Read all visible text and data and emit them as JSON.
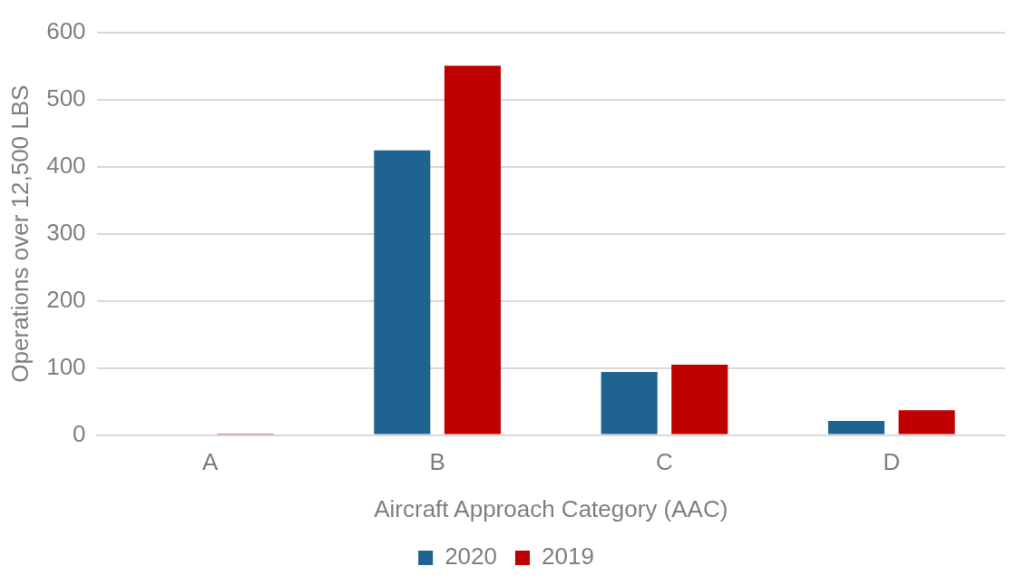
{
  "chart_data": {
    "type": "bar",
    "xlabel": "Aircraft Approach Category (AAC)",
    "ylabel": "Operations over 12,500 LBS",
    "categories": [
      "A",
      "B",
      "C",
      "D"
    ],
    "series": [
      {
        "name": "2020",
        "color": "#1f6391",
        "values": [
          0,
          424,
          94,
          21
        ]
      },
      {
        "name": "2019",
        "color": "#c00000",
        "values": [
          2,
          550,
          105,
          37
        ]
      }
    ],
    "ylim": [
      0,
      600
    ],
    "yticks": [
      0,
      100,
      200,
      300,
      400,
      500,
      600
    ],
    "grid": "y",
    "legend": "bottom"
  }
}
